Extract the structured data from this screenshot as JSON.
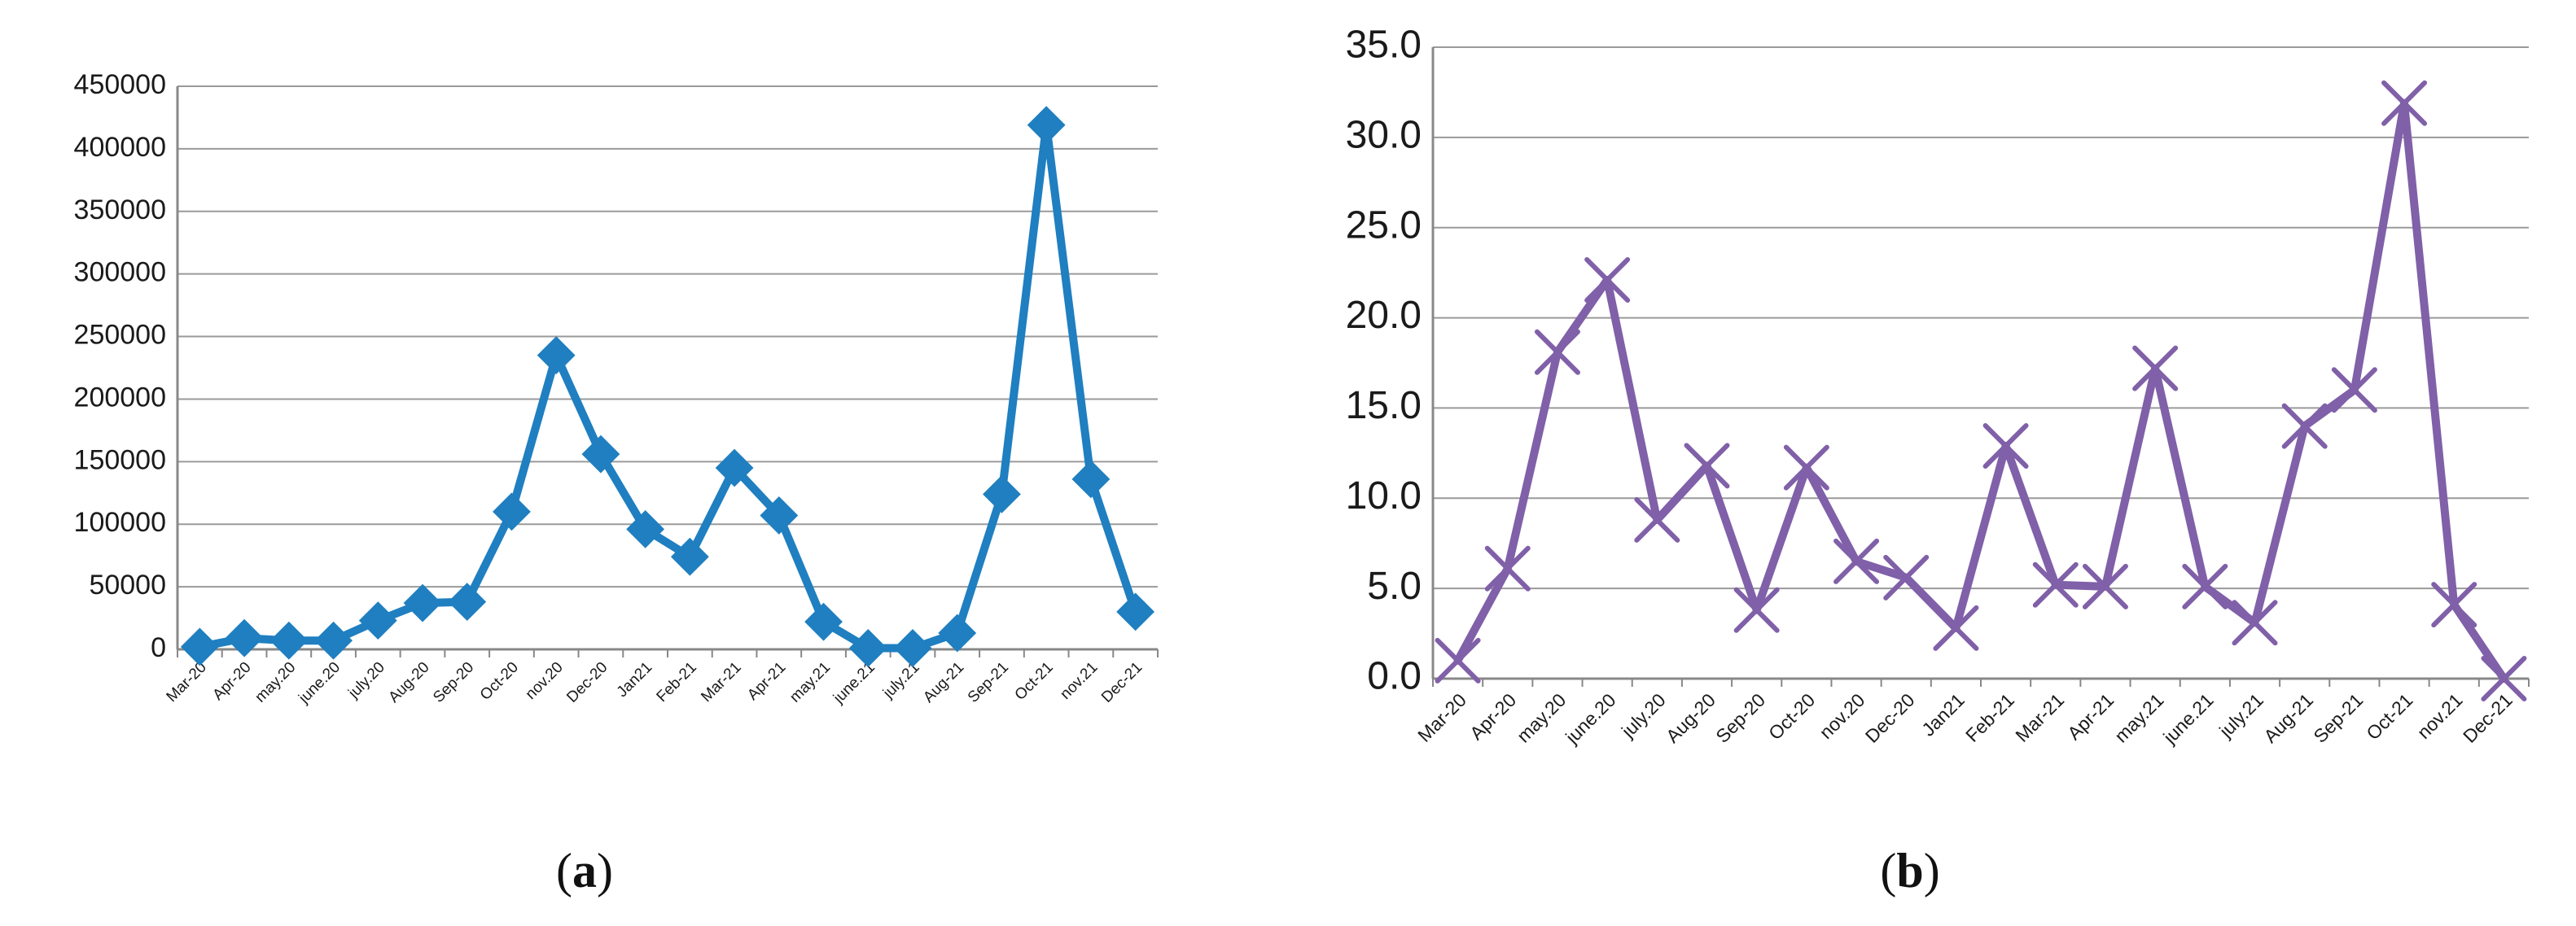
{
  "panels": [
    {
      "label_open": "(",
      "label_letter": "a",
      "label_close": ")"
    },
    {
      "label_open": "(",
      "label_letter": "b",
      "label_close": ")"
    }
  ],
  "chart_data": [
    {
      "type": "line",
      "panel": "a",
      "title": "",
      "xlabel": "",
      "ylabel": "",
      "categories": [
        "Mar-20",
        "Apr-20",
        "may.20",
        "june.20",
        "july.20",
        "Aug-20",
        "Sep-20",
        "Oct-20",
        "nov.20",
        "Dec-20",
        "Jan21",
        "Feb-21",
        "Mar-21",
        "Apr-21",
        "may.21",
        "june.21",
        "july.21",
        "Aug-21",
        "Sep-21",
        "Oct-21",
        "nov.21",
        "Dec-21"
      ],
      "ylim": [
        0,
        450000
      ],
      "yticks": [
        "0",
        "50000",
        "100000",
        "150000",
        "200000",
        "250000",
        "300000",
        "350000",
        "400000",
        "450000"
      ],
      "grid": true,
      "legend": "none",
      "marker": "diamond",
      "color": "#1f7fc0",
      "series": [
        {
          "values": [
            2000,
            9000,
            7000,
            7000,
            23000,
            37000,
            38000,
            110000,
            235000,
            156000,
            96000,
            74000,
            145000,
            107000,
            22000,
            1000,
            1000,
            13000,
            124000,
            419000,
            136000,
            30000
          ]
        }
      ]
    },
    {
      "type": "line",
      "panel": "b",
      "title": "",
      "xlabel": "",
      "ylabel": "",
      "categories": [
        "Mar-20",
        "Apr-20",
        "may.20",
        "june.20",
        "july.20",
        "Aug-20",
        "Sep-20",
        "Oct-20",
        "nov.20",
        "Dec-20",
        "Jan21",
        "Feb-21",
        "Mar-21",
        "Apr-21",
        "may.21",
        "june.21",
        "july.21",
        "Aug-21",
        "Sep-21",
        "Oct-21",
        "nov.21",
        "Dec-21"
      ],
      "ylim": [
        0,
        35
      ],
      "yticks": [
        "0.0",
        "5.0",
        "10.0",
        "15.0",
        "20.0",
        "25.0",
        "30.0",
        "35.0"
      ],
      "grid": true,
      "legend": "none",
      "marker": "x",
      "color": "#8060a8",
      "series": [
        {
          "values": [
            1.0,
            6.1,
            18.1,
            22.1,
            8.8,
            11.8,
            3.8,
            11.7,
            6.5,
            5.6,
            2.8,
            12.9,
            5.2,
            5.1,
            17.2,
            5.1,
            3.1,
            14.0,
            16.0,
            31.9,
            4.1,
            0.0
          ]
        }
      ]
    }
  ]
}
